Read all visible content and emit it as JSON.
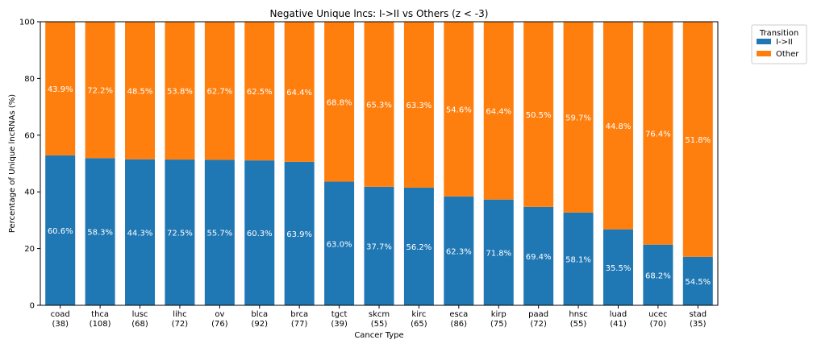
{
  "chart_data": {
    "type": "bar",
    "stacked": true,
    "title": "Negative Unique lncs: I->II vs Others (z < -3)",
    "xlabel": "Cancer Type",
    "ylabel": "Percentage of Unique lncRNAs (%)",
    "ylim": [
      0,
      100
    ],
    "yticks": [
      "0",
      "20",
      "40",
      "60",
      "80",
      "100"
    ],
    "grid": false,
    "legend": {
      "title": "Transition",
      "placement": "outside-top-right",
      "entries": [
        "I->II",
        "Other"
      ]
    },
    "categories": [
      [
        "coad",
        "(38)"
      ],
      [
        "thca",
        "(108)"
      ],
      [
        "lusc",
        "(68)"
      ],
      [
        "lihc",
        "(72)"
      ],
      [
        "ov",
        "(76)"
      ],
      [
        "blca",
        "(92)"
      ],
      [
        "brca",
        "(77)"
      ],
      [
        "tgct",
        "(39)"
      ],
      [
        "skcm",
        "(55)"
      ],
      [
        "kirc",
        "(65)"
      ],
      [
        "esca",
        "(86)"
      ],
      [
        "kirp",
        "(75)"
      ],
      [
        "paad",
        "(72)"
      ],
      [
        "hnsc",
        "(55)"
      ],
      [
        "luad",
        "(41)"
      ],
      [
        "ucec",
        "(70)"
      ],
      [
        "stad",
        "(35)"
      ]
    ],
    "series": [
      {
        "name": "I->II",
        "color": "#1f77b4",
        "values": [
          52.9,
          51.9,
          51.5,
          51.4,
          51.3,
          51.1,
          50.6,
          43.6,
          41.8,
          41.5,
          38.4,
          37.3,
          34.7,
          32.7,
          26.8,
          21.4,
          17.1
        ],
        "labels": [
          "60.6%",
          "58.3%",
          "44.3%",
          "72.5%",
          "55.7%",
          "60.3%",
          "63.9%",
          "63.0%",
          "37.7%",
          "56.2%",
          "62.3%",
          "71.8%",
          "69.4%",
          "58.1%",
          "35.5%",
          "68.2%",
          "54.5%"
        ]
      },
      {
        "name": "Other",
        "color": "#ff7f0e",
        "values": [
          47.1,
          48.1,
          48.5,
          48.6,
          48.7,
          48.9,
          49.4,
          56.4,
          58.2,
          58.5,
          61.6,
          62.7,
          65.3,
          67.3,
          73.2,
          78.6,
          82.9
        ],
        "labels": [
          "43.9%",
          "72.2%",
          "48.5%",
          "53.8%",
          "62.7%",
          "62.5%",
          "64.4%",
          "68.8%",
          "65.3%",
          "63.3%",
          "54.6%",
          "64.4%",
          "50.5%",
          "59.7%",
          "44.8%",
          "76.4%",
          "51.8%"
        ]
      }
    ]
  }
}
